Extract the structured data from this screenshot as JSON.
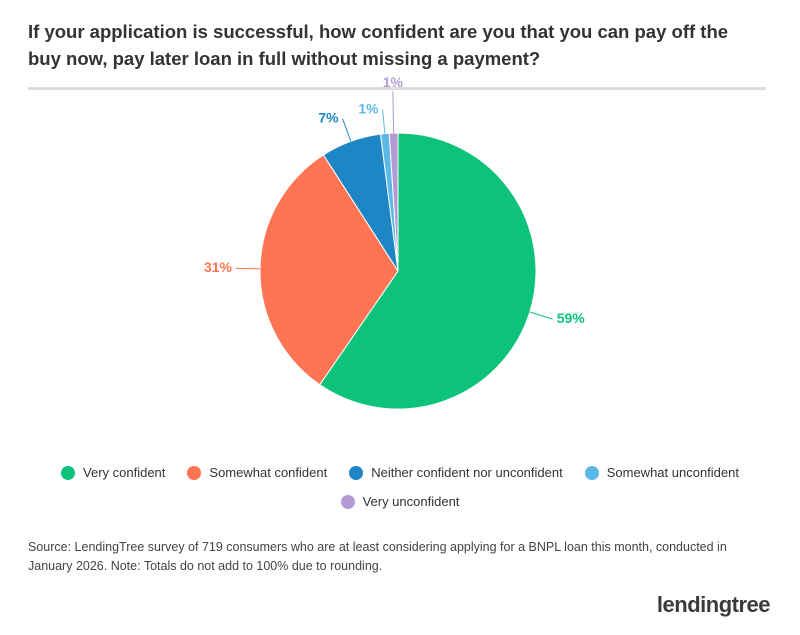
{
  "chart_data": {
    "type": "pie",
    "title": "If your application is successful, how confident are you that you can pay off the buy now, pay later loan in full without missing a payment?",
    "categories": [
      "Very confident",
      "Somewhat confident",
      "Neither confident nor unconfident",
      "Somewhat unconfident",
      "Very unconfident"
    ],
    "values": [
      59,
      31,
      7,
      1,
      1
    ],
    "value_labels": [
      "59%",
      "31%",
      "7%",
      "1%",
      "1%"
    ],
    "colors": [
      "#0dc27a",
      "#ff7452",
      "#1f86c5",
      "#5cb9e7",
      "#b39ad3"
    ],
    "note": "Source: LendingTree survey of 719 consumers who are at least considering applying for a BNPL loan this month, conducted in January 2026. Note: Totals do not add to 100% due to rounding."
  },
  "brand": "lendingtree"
}
